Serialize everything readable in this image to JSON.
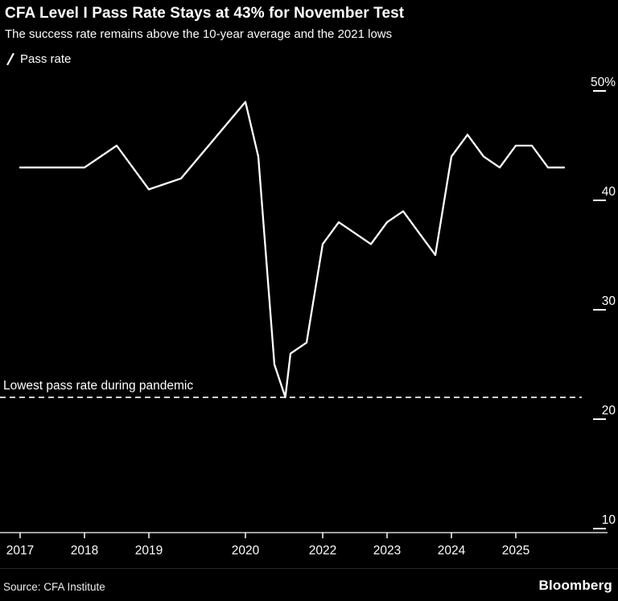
{
  "header": {
    "title": "CFA Level I Pass Rate Stays at 43% for November Test",
    "subtitle": "The success rate remains above the 10-year average and the 2021 lows"
  },
  "legend": {
    "label": "Pass rate"
  },
  "footer": {
    "source": "Source: CFA Institute",
    "brand": "Bloomberg"
  },
  "colors": {
    "background": "#000000",
    "line": "#ffffff",
    "text": "#ffffff",
    "axis": "#ffffff",
    "divider": "#262626"
  },
  "chart_data": {
    "type": "line",
    "title": "CFA Level I Pass Rate Stays at 43% for November Test",
    "subtitle": "The success rate remains above the 10-year average and the 2021 lows",
    "xlabel": "",
    "ylabel": "",
    "grid": false,
    "legend_position": "top-left",
    "xlim": [
      2017.42,
      2025.87
    ],
    "ylim": [
      10,
      50
    ],
    "series": [
      {
        "name": "Pass rate",
        "x": [
          2017.42,
          2017.92,
          2018.42,
          2018.92,
          2019.42,
          2019.92,
          2020.92,
          2021.12,
          2021.37,
          2021.54,
          2021.62,
          2021.87,
          2022.12,
          2022.37,
          2022.62,
          2022.87,
          2023.12,
          2023.37,
          2023.62,
          2023.87,
          2024.12,
          2024.37,
          2024.62,
          2024.87,
          2025.12,
          2025.37,
          2025.62,
          2025.87
        ],
        "values": [
          43,
          43,
          43,
          45,
          41,
          42,
          49,
          44,
          25,
          22,
          26,
          27,
          36,
          38,
          37,
          36,
          38,
          39,
          37,
          35,
          44,
          46,
          44,
          43,
          45,
          45,
          43,
          43
        ]
      }
    ],
    "x_ticks": [
      {
        "t": 2017.42,
        "label": "2017"
      },
      {
        "t": 2018.42,
        "label": "2018"
      },
      {
        "t": 2019.42,
        "label": "2019"
      },
      {
        "t": 2020.92,
        "label": "2020"
      },
      {
        "t": 2022.12,
        "label": "2022"
      },
      {
        "t": 2023.12,
        "label": "2023"
      },
      {
        "t": 2024.12,
        "label": "2024"
      },
      {
        "t": 2025.12,
        "label": "2025"
      }
    ],
    "y_ticks": [
      {
        "v": 50,
        "label": "50%"
      },
      {
        "v": 40,
        "label": "40"
      },
      {
        "v": 30,
        "label": "30"
      },
      {
        "v": 20,
        "label": "20"
      },
      {
        "v": 10,
        "label": "10"
      }
    ],
    "reference_line": {
      "label": "Lowest pass rate during pandemic",
      "value": 22,
      "style": "dashed"
    }
  }
}
